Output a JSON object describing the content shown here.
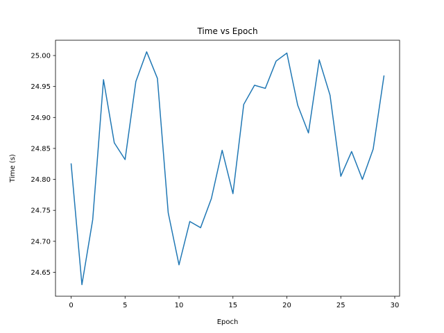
{
  "chart_data": {
    "type": "line",
    "title": "Time vs Epoch",
    "xlabel": "Epoch",
    "ylabel": "Time (s)",
    "xlim": [
      -1.45,
      30.45
    ],
    "ylim": [
      24.6113,
      25.0247
    ],
    "xticks": [
      0,
      5,
      10,
      15,
      20,
      25,
      30
    ],
    "yticks": [
      24.65,
      24.7,
      24.75,
      24.8,
      24.85,
      24.9,
      24.95,
      25.0
    ],
    "grid": false,
    "legend": "none",
    "line_color": "#1f77b4",
    "series": [
      {
        "x": [
          0,
          1,
          2,
          3,
          4,
          5,
          6,
          7,
          8,
          9,
          10,
          11,
          12,
          13,
          14,
          15,
          16,
          17,
          18,
          19,
          20,
          21,
          22,
          23,
          24,
          25,
          26,
          27,
          28,
          29
        ],
        "values": [
          24.825,
          24.63,
          24.735,
          24.961,
          24.859,
          24.832,
          24.958,
          25.006,
          24.963,
          24.746,
          24.662,
          24.732,
          24.722,
          24.769,
          24.847,
          24.777,
          24.921,
          24.952,
          24.947,
          24.991,
          25.004,
          24.92,
          24.875,
          24.993,
          24.936,
          24.805,
          24.845,
          24.8,
          24.849,
          24.967
        ]
      }
    ]
  }
}
